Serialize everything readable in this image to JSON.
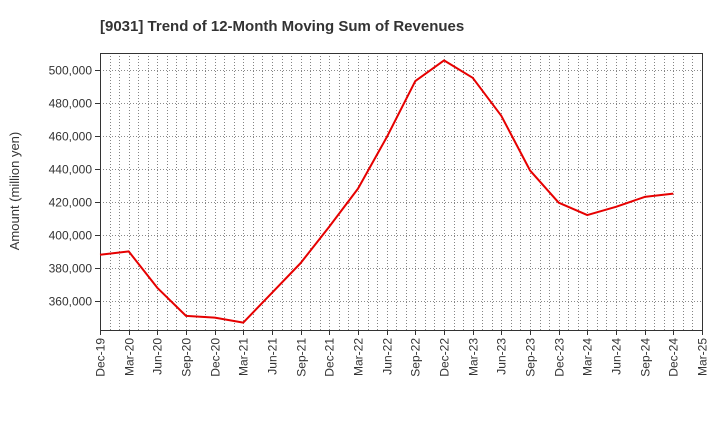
{
  "chart_data": {
    "type": "line",
    "title": "[9031]  Trend of 12-Month Moving Sum of Revenues",
    "xlabel": "",
    "ylabel": "Amount (million yen)",
    "x_ticks": [
      "Dec-19",
      "Mar-20",
      "Jun-20",
      "Sep-20",
      "Dec-20",
      "Mar-21",
      "Jun-21",
      "Sep-21",
      "Dec-21",
      "Mar-22",
      "Jun-22",
      "Sep-22",
      "Dec-22",
      "Mar-23",
      "Jun-23",
      "Sep-23",
      "Dec-23",
      "Mar-24",
      "Jun-24",
      "Sep-24",
      "Dec-24",
      "Mar-25"
    ],
    "y_ticks": [
      360000,
      380000,
      400000,
      420000,
      440000,
      460000,
      480000,
      500000
    ],
    "y_tick_labels": [
      "360,000",
      "380,000",
      "400,000",
      "420,000",
      "440,000",
      "460,000",
      "480,000",
      "500,000"
    ],
    "ylim": [
      342500,
      510000
    ],
    "grid": true,
    "legend": "none",
    "colors": {
      "line": "#e60000",
      "grid": "#666666",
      "axis": "#333333"
    },
    "series": [
      {
        "x": [
          "Dec-19",
          "Mar-20",
          "Jun-20",
          "Sep-20",
          "Dec-20",
          "Mar-21",
          "Jun-21",
          "Sep-21",
          "Dec-21",
          "Mar-22",
          "Jun-22",
          "Sep-22",
          "Dec-22",
          "Mar-23",
          "Jun-23",
          "Sep-23",
          "Dec-23",
          "Mar-24",
          "Jun-24",
          "Sep-24",
          "Dec-24"
        ],
        "values": [
          388000,
          390000,
          368000,
          351000,
          350000,
          347000,
          365000,
          383000,
          405000,
          428000,
          459000,
          493000,
          505500,
          495000,
          472000,
          439000,
          419500,
          412000,
          417000,
          423000,
          425000
        ]
      }
    ]
  }
}
